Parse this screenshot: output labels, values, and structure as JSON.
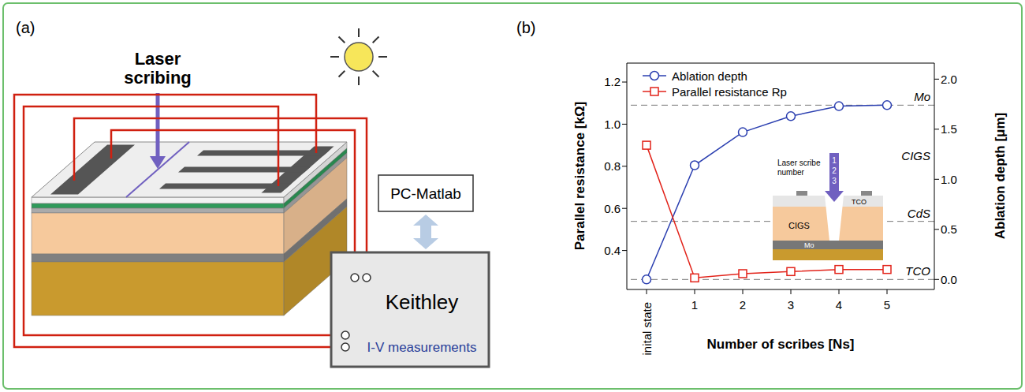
{
  "panel_a": {
    "label": "(a)",
    "laser_text": "Laser scribing",
    "computer_text": "PC-Matlab",
    "instrument_text": "Keithley",
    "measurement_text": "I-V measurements"
  },
  "chart_data": {
    "panel_label": "(b)",
    "type": "line",
    "categories": [
      "inital state",
      "1",
      "2",
      "3",
      "4",
      "5"
    ],
    "x_label": "Number of scribes [Ns]",
    "y_label": "Parallel resistance [kΩ]",
    "y2_label": "Ablation depth [μm]",
    "ylim": [
      0.215,
      1.29
    ],
    "yticks": [
      0.4,
      0.6,
      0.8,
      {
        "value": 1,
        "label": "1.0"
      },
      1.2
    ],
    "y2lim": [
      -0.1,
      2.16
    ],
    "y2ticks": [
      {
        "value": 0,
        "label": "0.0"
      },
      0.5,
      {
        "value": 1,
        "label": "1.0"
      },
      1.5,
      {
        "value": 2,
        "label": "2.0"
      }
    ],
    "legend": "top-left",
    "series": [
      {
        "name": "Ablation depth",
        "color": "#2b3fb0",
        "marker": "circle",
        "axis": "y2",
        "values": [
          0,
          1.14,
          1.47,
          1.63,
          1.73,
          1.74
        ]
      },
      {
        "name": "Parallel resistance Rp",
        "color": "#e2231a",
        "marker": "square",
        "values": [
          0.9,
          0.27,
          0.29,
          0.3,
          0.31,
          0.31
        ]
      }
    ],
    "annotations": [
      {
        "text": "Mo",
        "y": 1.74,
        "axis": "y2",
        "line_style": "dashed"
      },
      {
        "text": "CIGS",
        "y": 1.15,
        "axis": "y2"
      },
      {
        "text": "CdS",
        "y": 0.58,
        "axis": "y2",
        "line_style": "dashed"
      },
      {
        "text": "TCO",
        "y": 0,
        "axis": "y2",
        "line_style": "dashed"
      }
    ],
    "inset": {
      "arrow_text": "Laser scribe number",
      "scribe_numbers": [
        "1",
        "2",
        "3"
      ],
      "layers": [
        "TCO",
        "CIGS",
        "Mo"
      ]
    }
  }
}
